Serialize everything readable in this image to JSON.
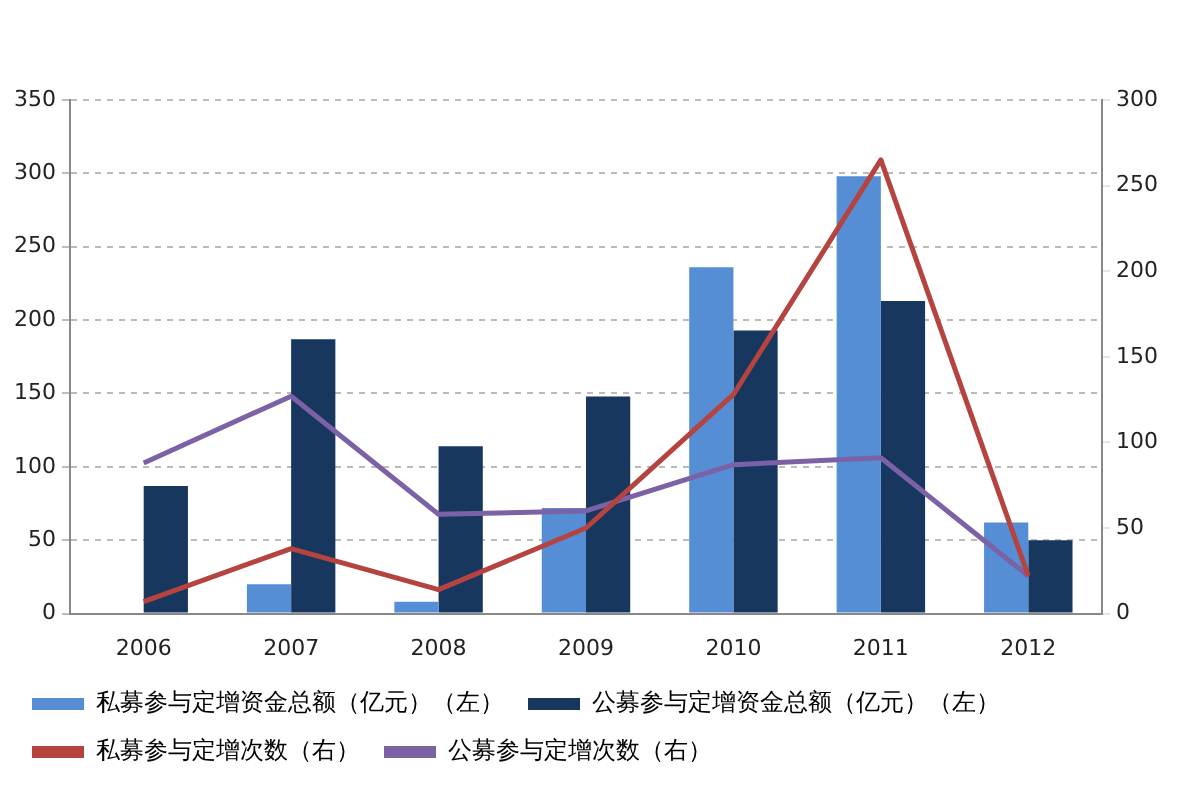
{
  "chart_data": {
    "type": "bar",
    "categories": [
      "2006",
      "2007",
      "2008",
      "2009",
      "2010",
      "2011",
      "2012"
    ],
    "series": [
      {
        "name": "私募参与定增资金总额（亿元）（左）",
        "color": "#558ed5",
        "values": [
          0,
          20,
          8,
          72,
          236,
          298,
          62
        ]
      },
      {
        "name": "公募参与定增资金总额（亿元）（左）",
        "color": "#17375e",
        "values": [
          87,
          187,
          114,
          148,
          193,
          213,
          50
        ]
      },
      {
        "name": "私募参与定增次数（右）",
        "type": "line",
        "axis": "y2",
        "color": "#b5433f",
        "values": [
          7,
          38,
          14,
          50,
          128,
          265,
          22
        ]
      },
      {
        "name": "公募参与定增次数（右）",
        "type": "line",
        "axis": "y2",
        "color": "#7b62a6",
        "values": [
          88,
          127,
          58,
          60,
          87,
          91,
          22
        ]
      }
    ],
    "ylim": [
      0,
      350
    ],
    "yticks": [
      0,
      50,
      100,
      150,
      200,
      250,
      300,
      350
    ],
    "y2lim": [
      0,
      300
    ],
    "y2ticks": [
      0,
      50,
      100,
      150,
      200,
      250,
      300
    ],
    "grid": "y",
    "legend": "bottom",
    "marker": "none",
    "line_style": "solid"
  }
}
